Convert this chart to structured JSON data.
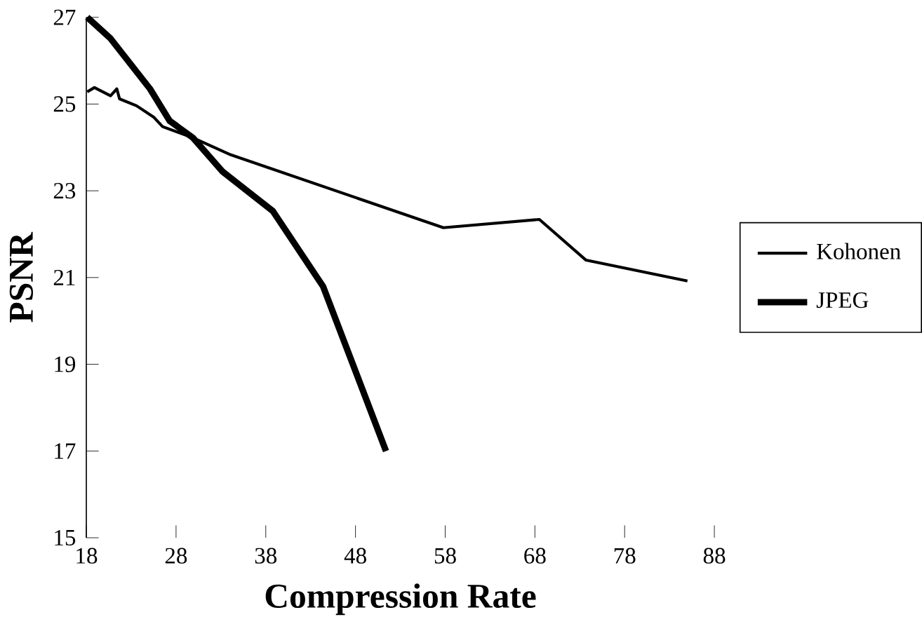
{
  "chart_data": {
    "type": "line",
    "xlabel": "Compression Rate",
    "ylabel": "PSNR",
    "xlim": [
      18,
      88
    ],
    "xticks": [
      18,
      28,
      38,
      48,
      58,
      68,
      78,
      88
    ],
    "ylim": [
      15,
      27
    ],
    "yticks": [
      15,
      17,
      19,
      21,
      23,
      25,
      27
    ],
    "legend": "right",
    "grid": false,
    "marker": "none",
    "line_style": "solid",
    "series": [
      {
        "name": "Kohonen",
        "color": "#000000",
        "x": [
          18.1,
          18.9,
          20.7,
          21.4,
          21.7,
          23.6,
          25.5,
          26.5,
          29.9,
          34.1,
          57.8,
          68.5,
          73.7,
          85.0
        ],
        "values": [
          25.28,
          25.38,
          25.19,
          25.35,
          25.12,
          24.96,
          24.7,
          24.48,
          24.22,
          23.83,
          22.15,
          22.34,
          21.4,
          20.92
        ]
      },
      {
        "name": "JPEG",
        "color": "#000000",
        "x": [
          18.1,
          20.7,
          25.1,
          27.3,
          29.9,
          33.2,
          38.8,
          44.4,
          51.4
        ],
        "values": [
          27.0,
          26.51,
          25.35,
          24.61,
          24.22,
          23.44,
          22.53,
          20.79,
          17.0
        ]
      }
    ]
  }
}
